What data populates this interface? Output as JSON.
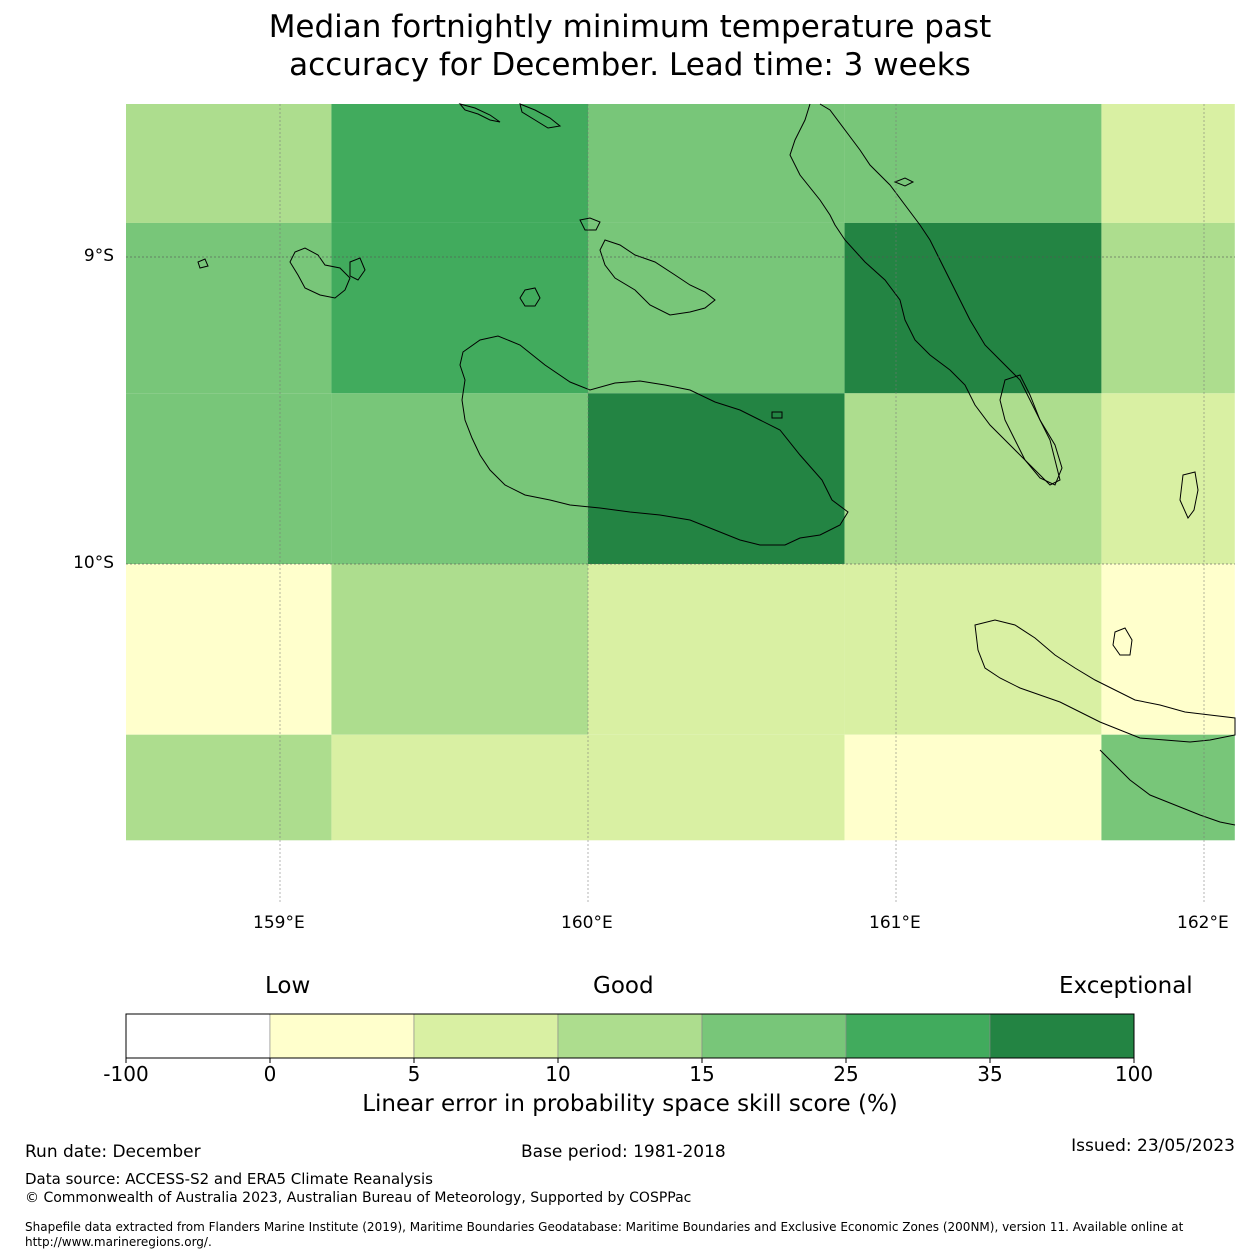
{
  "title_line1": "Median fortnightly minimum temperature past",
  "title_line2": "accuracy for December. Lead time: 3 weeks",
  "colors": {
    "c0": "#ffffff",
    "c1": "#ffffcc",
    "c2": "#d9f0a3",
    "c3": "#addd8e",
    "c4": "#78c679",
    "c5": "#41ab5d",
    "c6": "#238443"
  },
  "chart_data": {
    "type": "heatmap",
    "title": "Median fortnightly minimum temperature past accuracy for December. Lead time: 3 weeks",
    "x_range": [
      158.5,
      162.1
    ],
    "y_range": [
      -10.9,
      -8.5
    ],
    "x_ticks": [
      {
        "value": 159,
        "label": "159°E"
      },
      {
        "value": 160,
        "label": "160°E"
      },
      {
        "value": 161,
        "label": "161°E"
      },
      {
        "value": 162,
        "label": "162°E"
      }
    ],
    "y_ticks": [
      {
        "value": -9,
        "label": "9°S"
      },
      {
        "value": -10,
        "label": "10°S"
      }
    ],
    "col_edges": [
      158.5,
      159.167,
      160.0,
      160.833,
      161.667,
      162.1
    ],
    "row_edges": [
      -8.5,
      -8.889,
      -9.444,
      -10.0,
      -10.556,
      -10.9
    ],
    "cells": [
      [
        "c3",
        "c5",
        "c4",
        "c4",
        "c2"
      ],
      [
        "c4",
        "c5",
        "c4",
        "c6",
        "c3"
      ],
      [
        "c4",
        "c4",
        "c6",
        "c3",
        "c2"
      ],
      [
        "c1",
        "c3",
        "c2",
        "c2",
        "c1"
      ],
      [
        "c3",
        "c2",
        "c2",
        "c1",
        "c4"
      ]
    ],
    "colorbar": {
      "bounds": [
        "-100",
        "0",
        "5",
        "10",
        "15",
        "25",
        "35",
        "100"
      ],
      "colors": [
        "c0",
        "c1",
        "c2",
        "c3",
        "c4",
        "c5",
        "c6"
      ],
      "label": "Linear error in probability space skill score (%)",
      "category_labels": [
        "Low",
        "Good",
        "Exceptional"
      ]
    }
  },
  "footer": {
    "run_date": "Run date: December",
    "base_period": "Base period: 1981-2018",
    "issued": "Issued: 23/05/2023",
    "data_source": "Data source: ACCESS-S2 and ERA5 Climate Reanalysis",
    "copyright": "© Commonwealth of Australia 2023, Australian Bureau of Meteorology, Supported by COSPPac",
    "shapefile_line1": "Shapefile data extracted from Flanders Marine Institute (2019), Maritime Boundaries Geodatabase: Maritime Boundaries and Exclusive Economic Zones (200NM), version 11. Available online at",
    "shapefile_line2": "http://www.marineregions.org/."
  }
}
